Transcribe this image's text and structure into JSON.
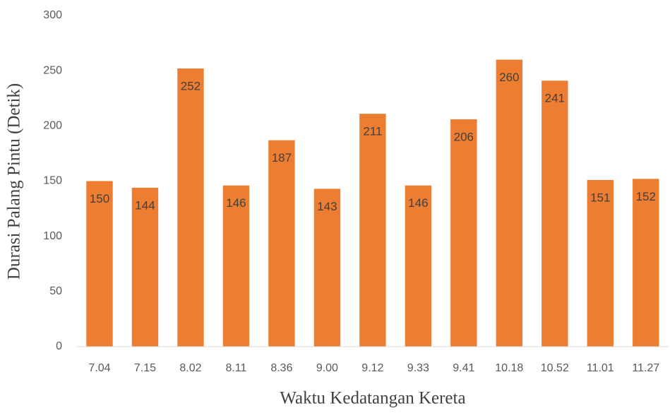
{
  "chart_data": {
    "type": "bar",
    "categories": [
      "7.04",
      "7.15",
      "8.02",
      "8.11",
      "8.36",
      "9.00",
      "9.12",
      "9.33",
      "9.41",
      "10.18",
      "10.52",
      "11.01",
      "11.27"
    ],
    "values": [
      150,
      144,
      252,
      146,
      187,
      143,
      211,
      146,
      206,
      260,
      241,
      151,
      152
    ],
    "color": "#ed7d31",
    "xlabel": "Waktu  Kedatangan Kereta",
    "ylabel": "Durasi Palang Pintu (Detik)",
    "ylim": [
      0,
      300
    ],
    "yticks": [
      0,
      50,
      100,
      150,
      200,
      250,
      300
    ],
    "grid": false,
    "data_labels": true
  }
}
